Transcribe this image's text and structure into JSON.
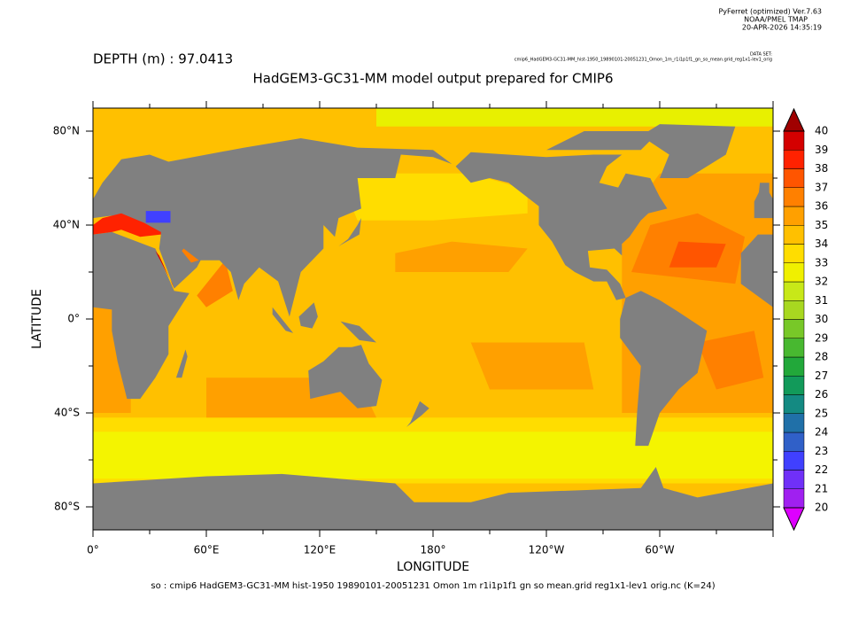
{
  "header": {
    "software": "PyFerret (optimized) Ver.7.63",
    "org": "NOAA/PMEL TMAP",
    "date": "20-APR-2026 14:35:19",
    "dataset_label": "DATA SET:",
    "dataset": "cmip6_HadGEM3-GC31-MM_hist-1950_19890101-20051231_Omon_1m_r1i1p1f1_gn_so_mean.grid_reg1x1-lev1_orig"
  },
  "depth": "DEPTH (m) : 97.0413",
  "title": "HadGEM3-GC31-MM model output prepared for CMIP6",
  "x_axis": {
    "label": "LONGITUDE",
    "ticks": [
      "0°",
      "60°E",
      "120°E",
      "180°",
      "120°W",
      "60°W"
    ]
  },
  "y_axis": {
    "label": "LATITUDE",
    "ticks": [
      "80°N",
      "40°N",
      "0°",
      "40°S",
      "80°S"
    ]
  },
  "colorbar": {
    "levels": [
      20,
      21,
      22,
      23,
      24,
      25,
      26,
      27,
      28,
      29,
      30,
      31,
      32,
      33,
      34,
      35,
      36,
      37,
      38,
      39,
      40
    ],
    "colors": [
      "#a020f0",
      "#7030f8",
      "#4040ff",
      "#3060c8",
      "#2070a8",
      "#148a82",
      "#129a5a",
      "#22a83a",
      "#48b830",
      "#78c828",
      "#a8d820",
      "#c8e818",
      "#f0f000",
      "#ffdd00",
      "#ffc000",
      "#ffa000",
      "#ff8000",
      "#ff5500",
      "#ff2200",
      "#d40000"
    ],
    "over_color": "#a00000",
    "under_color": "#dd00ff"
  },
  "footer": "so : cmip6 HadGEM3-GC31-MM hist-1950 19890101-20051231 Omon 1m r1i1p1f1 gn so mean.grid reg1x1-lev1 orig.nc (K=24)"
}
